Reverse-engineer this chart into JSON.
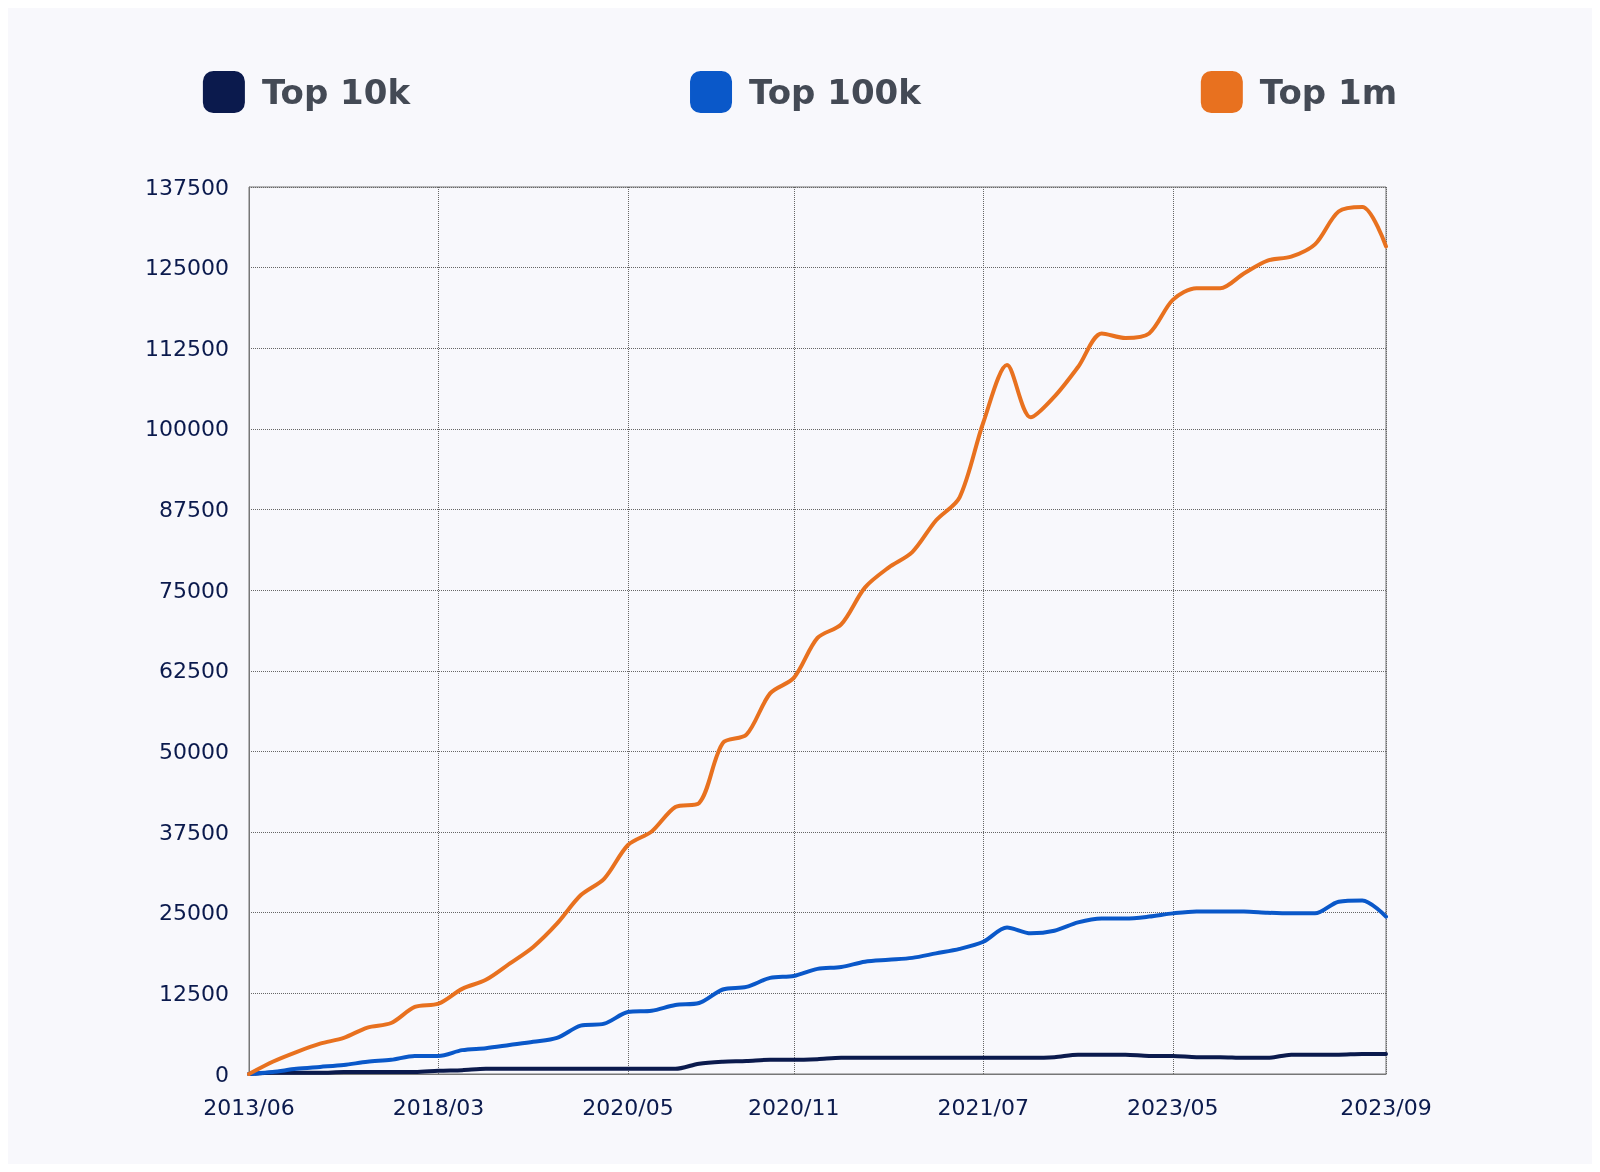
{
  "chart_data": {
    "type": "line",
    "legend": "top",
    "grid": true,
    "categories": [
      "2013/06",
      null,
      null,
      null,
      null,
      null,
      null,
      null,
      "2018/03",
      null,
      null,
      null,
      null,
      null,
      null,
      null,
      "2020/05",
      null,
      null,
      null,
      null,
      null,
      null,
      "2020/11",
      null,
      null,
      null,
      null,
      null,
      null,
      null,
      "2021/07",
      null,
      null,
      null,
      null,
      null,
      null,
      null,
      "2023/05",
      null,
      null,
      null,
      null,
      null,
      null,
      null,
      null,
      "2023/09"
    ],
    "ylim": [
      0,
      137500
    ],
    "yticks": [
      0,
      12500,
      25000,
      37500,
      50000,
      62500,
      75000,
      87500,
      100000,
      112500,
      125000,
      137500
    ],
    "series": [
      {
        "name": "Top 10k",
        "color": "#0b1a4d",
        "values": [
          0,
          200,
          200,
          200,
          300,
          300,
          300,
          300,
          500,
          600,
          800,
          800,
          800,
          800,
          800,
          800,
          800,
          800,
          800,
          1600,
          1900,
          2000,
          2200,
          2200,
          2300,
          2500,
          2500,
          2500,
          2500,
          2500,
          2500,
          2500,
          2500,
          2500,
          2600,
          3000,
          3000,
          3000,
          2800,
          2800,
          2600,
          2600,
          2500,
          2500,
          3000,
          3000,
          3000,
          3100,
          3100
        ]
      },
      {
        "name": "Top 100k",
        "color": "#0a58c9",
        "values": [
          0,
          300,
          800,
          1100,
          1400,
          1900,
          2200,
          2800,
          2800,
          3700,
          4000,
          4500,
          5000,
          5600,
          7500,
          7800,
          9600,
          9800,
          10700,
          11000,
          13100,
          13500,
          14900,
          15200,
          16300,
          16600,
          17400,
          17700,
          18000,
          18700,
          19400,
          20500,
          22700,
          21800,
          22200,
          23500,
          24100,
          24100,
          24400,
          24900,
          25200,
          25200,
          25200,
          25000,
          24900,
          24900,
          26700,
          26900,
          24400
        ]
      },
      {
        "name": "Top 1m",
        "color": "#e8711f",
        "values": [
          0,
          1900,
          3400,
          4700,
          5600,
          7200,
          7900,
          10400,
          10900,
          13200,
          14600,
          17100,
          19700,
          23300,
          27700,
          30300,
          35500,
          37600,
          41400,
          42000,
          51300,
          52600,
          59000,
          61400,
          67600,
          69700,
          75400,
          78500,
          80900,
          85800,
          89400,
          101000,
          109900,
          101800,
          105000,
          109600,
          114800,
          114100,
          114800,
          120000,
          121800,
          121800,
          124100,
          126100,
          126700,
          128600,
          133700,
          134400,
          128300
        ]
      }
    ]
  }
}
